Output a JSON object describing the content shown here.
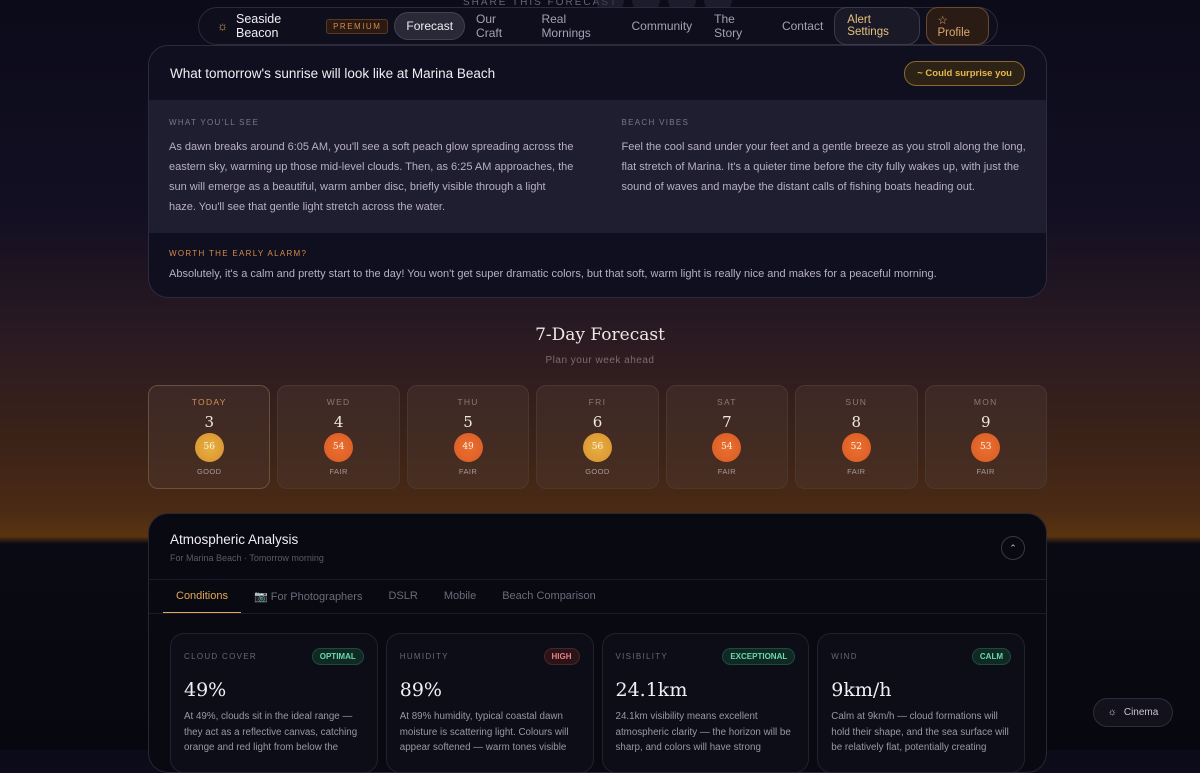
{
  "share": {
    "label": "SHARE THIS FORECAST"
  },
  "nav": {
    "brand": "Seaside Beacon",
    "badge": "PREMIUM",
    "links": [
      "Forecast",
      "Our Craft",
      "Real Mornings",
      "Community",
      "The Story",
      "Contact"
    ],
    "alert": "Alert Settings",
    "profile": "☆ Profile"
  },
  "sunrise": {
    "title": "What tomorrow's sunrise will look like at Marina Beach",
    "badge": "~ Could surprise you",
    "see_label": "WHAT YOU'LL SEE",
    "see_text": "As dawn breaks around 6:05 AM, you'll see a soft peach glow spreading across the eastern sky, warming up those mid-level clouds. Then, as 6:25 AM approaches, the sun will emerge as a beautiful, warm amber disc, briefly visible through a light haze. You'll see that gentle light stretch across the water.",
    "vibes_label": "BEACH VIBES",
    "vibes_text": "Feel the cool sand under your feet and a gentle breeze as you stroll along the long, flat stretch of Marina. It's a quieter time before the city fully wakes up, with just the sound of waves and maybe the distant calls of fishing boats heading out.",
    "worth_label": "WORTH THE EARLY ALARM?",
    "worth_text": "Absolutely, it's a calm and pretty start to the day! You won't get super dramatic colors, but that soft, warm light is really nice and makes for a peaceful morning."
  },
  "forecast": {
    "title": "7-Day Forecast",
    "subtitle": "Plan your week ahead",
    "days": [
      {
        "name": "TODAY",
        "date": "3",
        "score": "56",
        "rating": "GOOD"
      },
      {
        "name": "WED",
        "date": "4",
        "score": "54",
        "rating": "FAIR"
      },
      {
        "name": "THU",
        "date": "5",
        "score": "49",
        "rating": "FAIR"
      },
      {
        "name": "FRI",
        "date": "6",
        "score": "56",
        "rating": "GOOD"
      },
      {
        "name": "SAT",
        "date": "7",
        "score": "54",
        "rating": "FAIR"
      },
      {
        "name": "SUN",
        "date": "8",
        "score": "52",
        "rating": "FAIR"
      },
      {
        "name": "MON",
        "date": "9",
        "score": "53",
        "rating": "FAIR"
      }
    ]
  },
  "atmos": {
    "title": "Atmospheric Analysis",
    "subtitle": "For Marina Beach · Tomorrow morning",
    "tabs": [
      "Conditions",
      "📷 For Photographers",
      "DSLR",
      "Mobile",
      "Beach Comparison"
    ],
    "metrics": [
      {
        "key": "CLOUD COVER",
        "badge": "OPTIMAL",
        "value": "49%",
        "text": "At 49%, clouds sit in the ideal range — they act as a reflective canvas, catching orange and red light from below the"
      },
      {
        "key": "HUMIDITY",
        "badge": "HIGH",
        "value": "89%",
        "text": "At 89% humidity, typical coastal dawn moisture is scattering light. Colours will appear softened — warm tones visible"
      },
      {
        "key": "VISIBILITY",
        "badge": "EXCEPTIONAL",
        "value": "24.1km",
        "text": "24.1km visibility means excellent atmospheric clarity — the horizon will be sharp, and colors will have strong"
      },
      {
        "key": "WIND",
        "badge": "CALM",
        "value": "9km/h",
        "text": "Calm at 9km/h — cloud formations will hold their shape, and the sea surface will be relatively flat, potentially creating"
      }
    ]
  },
  "cinema": {
    "label": "Cinema"
  },
  "colors": {
    "accent": "#e0a858",
    "good": "#e8b040",
    "fair": "#ec7030"
  }
}
